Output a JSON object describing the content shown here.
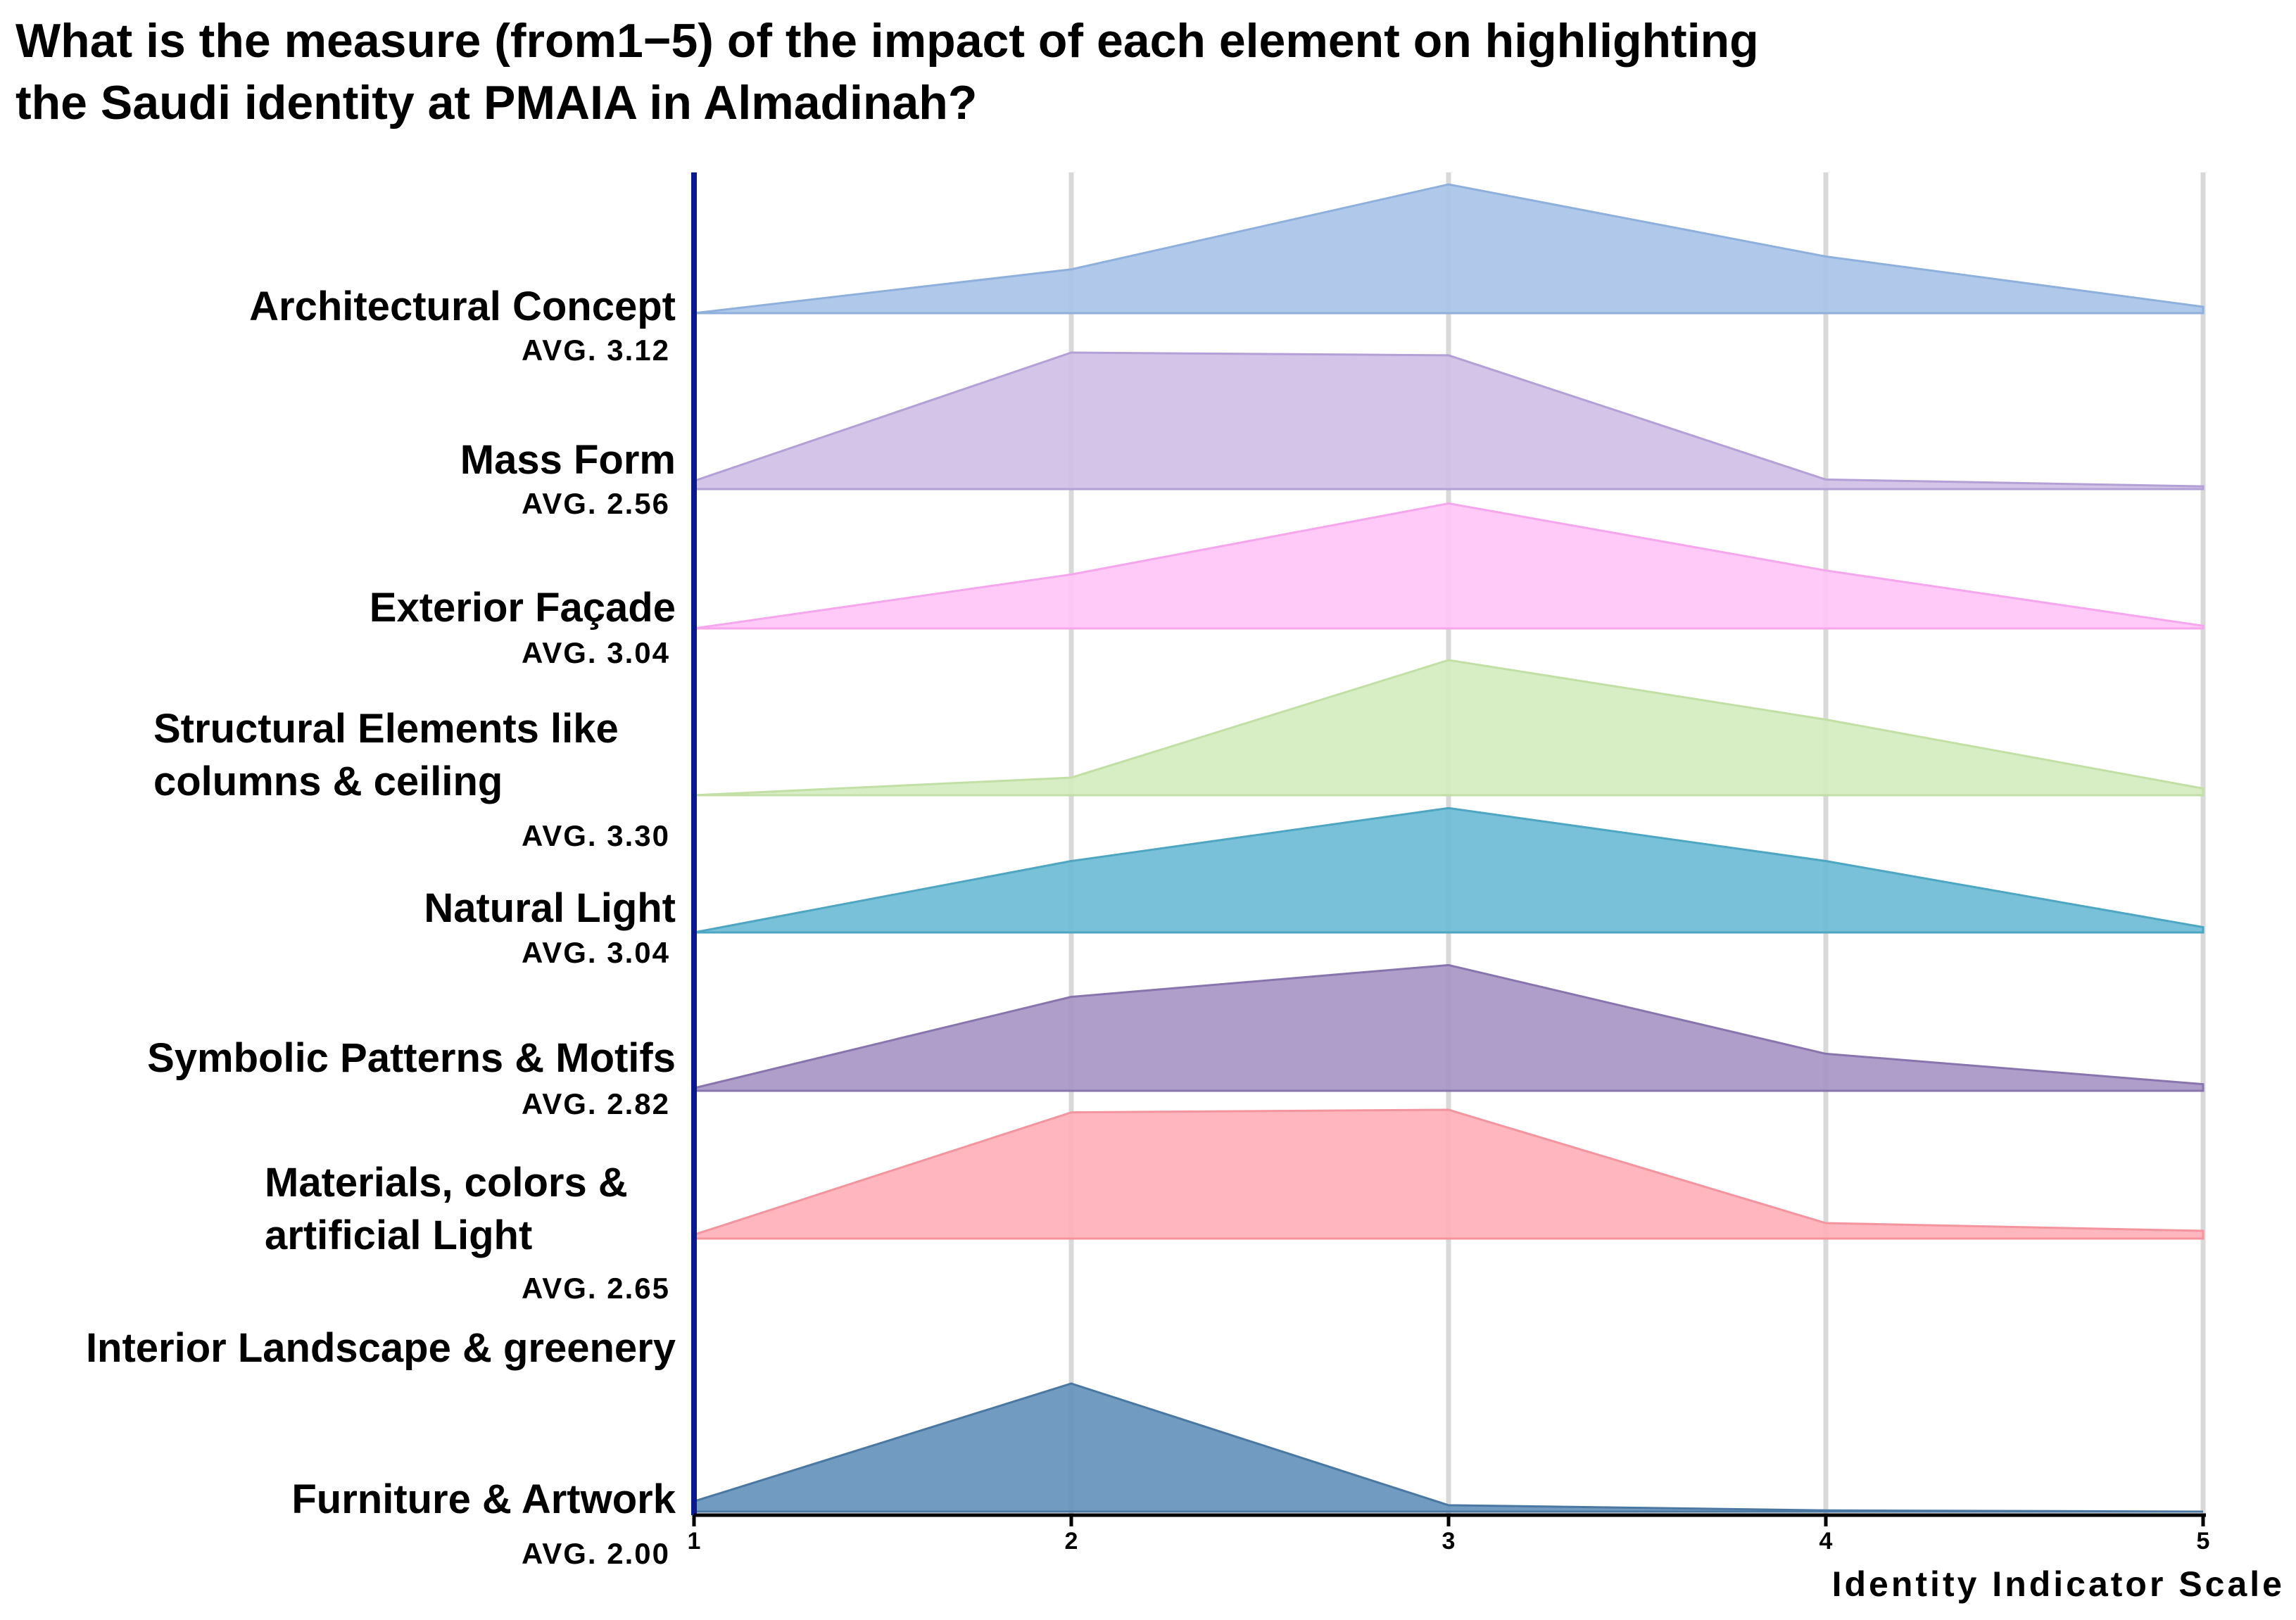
{
  "chart_data": {
    "type": "area",
    "subtype": "ridgeline",
    "title_lines": [
      "What is the measure (from1−5) of the impact of each element on highlighting",
      "the Saudi identity at PMAIA in Almadinah?"
    ],
    "xlabel": "Identity Indicator Scale",
    "x": [
      1,
      2,
      3,
      4,
      5
    ],
    "xlim": [
      1,
      5
    ],
    "xticks": [
      "1",
      "2",
      "3",
      "4",
      "5"
    ],
    "grid": true,
    "series": [
      {
        "name_lines": [
          "Architectural Concept"
        ],
        "avg": "AVG. 3.12",
        "values": [
          0.0,
          0.34,
          1.0,
          0.44,
          0.05
        ],
        "color": "#a9c4e8",
        "stroke": "#8fb0dc"
      },
      {
        "name_lines": [
          "Mass Form"
        ],
        "avg": "AVG. 2.56",
        "values": [
          0.06,
          1.0,
          0.98,
          0.07,
          0.02
        ],
        "color": "#cfbfe6",
        "stroke": "#b3a0d6"
      },
      {
        "name_lines": [
          "Exterior Façade"
        ],
        "avg": "AVG. 3.04",
        "values": [
          0.0,
          0.41,
          0.95,
          0.44,
          0.02
        ],
        "color": "#ffc4f7",
        "stroke": "#f6a6ec"
      },
      {
        "name_lines": [
          "Structural Elements like",
          "columns & ceiling"
        ],
        "avg": "AVG. 3.30",
        "values": [
          0.0,
          0.13,
          1.0,
          0.56,
          0.05
        ],
        "color": "#d4ecbf",
        "stroke": "#c2e0a6"
      },
      {
        "name_lines": [
          "Natural Light"
        ],
        "avg": "AVG. 3.04",
        "values": [
          0.0,
          0.54,
          0.94,
          0.54,
          0.04
        ],
        "color": "#6cbcd5",
        "stroke": "#4ea6c3"
      },
      {
        "name_lines": [
          "Symbolic Patterns & Motifs"
        ],
        "avg": "AVG. 2.82",
        "values": [
          0.02,
          0.71,
          0.95,
          0.28,
          0.05
        ],
        "color": "#a996c5",
        "stroke": "#8875ae"
      },
      {
        "name_lines": [
          "Materials, colors &",
          "artificial Light"
        ],
        "avg": "AVG. 2.65",
        "values": [
          0.03,
          0.98,
          1.0,
          0.12,
          0.06
        ],
        "color": "#ffb0b8",
        "stroke": "#f4949e"
      },
      {
        "name_lines": [
          "Interior Landscape & greenery"
        ],
        "avg": "",
        "values": [
          0,
          0,
          0,
          0,
          0
        ],
        "color": "#ffffff",
        "stroke": "none"
      },
      {
        "name_lines": [
          "Furniture & Artwork"
        ],
        "avg": "AVG. 2.00",
        "values": [
          0.08,
          1.0,
          0.05,
          0.01,
          0.0
        ],
        "color": "#6593bb",
        "stroke": "#4a78a3"
      }
    ]
  }
}
